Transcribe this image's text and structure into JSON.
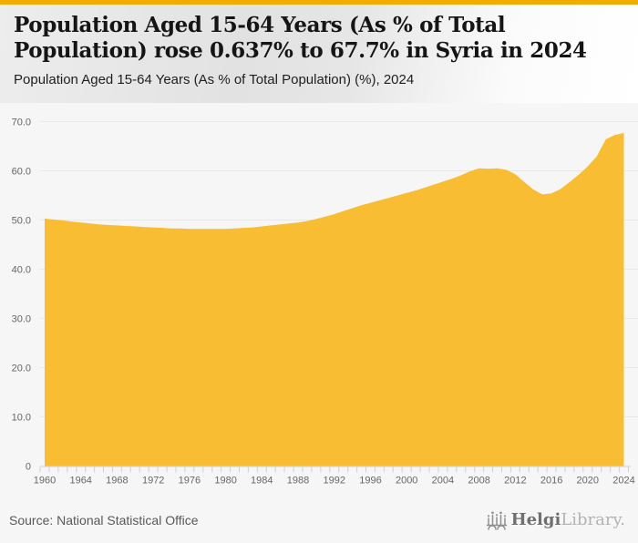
{
  "header": {
    "title_line1": "Population Aged 15-64 Years (As % of Total",
    "title_line2": "Population) rose 0.637% to 67.7% in Syria in 2024",
    "subtitle": "Population Aged 15-64 Years (As % of Total Population) (%), 2024"
  },
  "footer": {
    "source": "Source: National Statistical Office",
    "logo_primary": "Helgi",
    "logo_secondary": "Library."
  },
  "colors": {
    "accent_bar": "#F2AC00",
    "area_fill": "#F9BD33",
    "grid_line": "#E8E8E8",
    "tick_line": "#CCD2E0",
    "axis_text": "#666666",
    "title_text": "#151515",
    "source_text": "#585858"
  },
  "chart_data": {
    "type": "area",
    "title": "Population Aged 15-64 Years (As % of Total Population) rose 0.637% to 67.7% in Syria in 2024",
    "subtitle": "Population Aged 15-64 Years (As % of Total Population) (%), 2024",
    "series_name": "Population Aged 15-64 Years (As % of Total Population) (%)",
    "xlabel": "",
    "ylabel": "%",
    "grid": true,
    "legend": false,
    "ylim": [
      0,
      73.8
    ],
    "xlim": [
      1959.5,
      2025.5
    ],
    "x": [
      1960,
      1961,
      1962,
      1963,
      1964,
      1965,
      1966,
      1967,
      1968,
      1969,
      1970,
      1971,
      1972,
      1973,
      1974,
      1975,
      1976,
      1977,
      1978,
      1979,
      1980,
      1981,
      1982,
      1983,
      1984,
      1985,
      1986,
      1987,
      1988,
      1989,
      1990,
      1991,
      1992,
      1993,
      1994,
      1995,
      1996,
      1997,
      1998,
      1999,
      2000,
      2001,
      2002,
      2003,
      2004,
      2005,
      2006,
      2007,
      2008,
      2009,
      2010,
      2011,
      2012,
      2013,
      2014,
      2015,
      2016,
      2017,
      2018,
      2019,
      2020,
      2021,
      2022,
      2023,
      2024
    ],
    "values": [
      50.3,
      50.1,
      49.9,
      49.7,
      49.5,
      49.3,
      49.1,
      49.0,
      48.9,
      48.8,
      48.7,
      48.6,
      48.5,
      48.4,
      48.3,
      48.3,
      48.2,
      48.2,
      48.2,
      48.2,
      48.2,
      48.3,
      48.4,
      48.5,
      48.7,
      48.9,
      49.1,
      49.3,
      49.5,
      49.8,
      50.2,
      50.7,
      51.2,
      51.8,
      52.4,
      53.0,
      53.5,
      54.0,
      54.5,
      55.0,
      55.5,
      56.0,
      56.6,
      57.2,
      57.8,
      58.4,
      59.1,
      59.9,
      60.5,
      60.4,
      60.5,
      60.2,
      59.3,
      57.7,
      56.2,
      55.2,
      55.4,
      56.3,
      57.7,
      59.2,
      60.9,
      62.9,
      66.4,
      67.3,
      67.7
    ],
    "xticks": [
      1960,
      1964,
      1968,
      1972,
      1976,
      1980,
      1984,
      1988,
      1992,
      1996,
      2000,
      2004,
      2008,
      2012,
      2016,
      2020,
      2024
    ],
    "yticks": [
      {
        "v": 0,
        "label": "0"
      },
      {
        "v": 10,
        "label": "10.0"
      },
      {
        "v": 20,
        "label": "20.0"
      },
      {
        "v": 30,
        "label": "30.0"
      },
      {
        "v": 40,
        "label": "40.0"
      },
      {
        "v": 50,
        "label": "50.0"
      },
      {
        "v": 60,
        "label": "60.0"
      },
      {
        "v": 70,
        "label": "70.0"
      }
    ]
  }
}
